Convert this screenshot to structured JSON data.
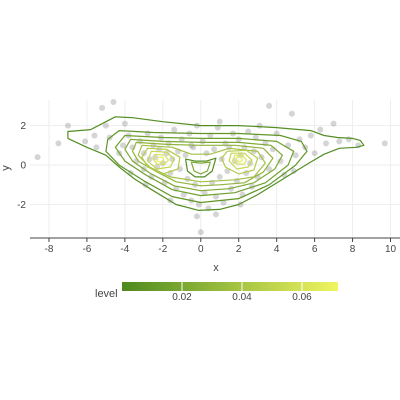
{
  "chart_data": {
    "type": "scatter",
    "subtype": "density-contour overlay",
    "title": "",
    "xlabel": "x",
    "ylabel": "y",
    "xlim": [
      -9,
      10.5
    ],
    "ylim": [
      -3.7,
      3.3
    ],
    "x_ticks": [
      -8,
      -6,
      -4,
      -2,
      0,
      2,
      4,
      6,
      8,
      10
    ],
    "y_ticks": [
      -2,
      0,
      2
    ],
    "grid": true,
    "legend": {
      "title": "level",
      "placement": "bottom",
      "type": "colorbar",
      "range": [
        0.0,
        0.072
      ],
      "ticks": [
        0.02,
        0.04,
        0.06
      ],
      "tick_labels": [
        "0.02",
        "0.04",
        "0.06"
      ],
      "color_low": "#4d8a1f",
      "color_high": "#f0f560"
    },
    "colors": {
      "points": "#888888",
      "contour_low": "#4d8a1f",
      "contour_high": "#eef263",
      "grid": "#eeeeee"
    },
    "contours": [
      {
        "level": 0.003,
        "points": [
          [
            -5.0,
            2.2
          ],
          [
            -4.5,
            2.45
          ],
          [
            -3.6,
            2.4
          ],
          [
            -2.0,
            2.2
          ],
          [
            0.0,
            2.0
          ],
          [
            2.0,
            2.0
          ],
          [
            4.0,
            1.9
          ],
          [
            5.8,
            1.75
          ],
          [
            6.5,
            1.5
          ],
          [
            7.2,
            1.4
          ],
          [
            8.0,
            1.35
          ],
          [
            8.4,
            1.25
          ],
          [
            8.6,
            1.0
          ],
          [
            8.2,
            0.9
          ],
          [
            7.3,
            0.85
          ],
          [
            6.5,
            0.55
          ],
          [
            5.7,
            0.1
          ],
          [
            4.6,
            -0.55
          ],
          [
            3.0,
            -1.5
          ],
          [
            2.0,
            -2.0
          ],
          [
            1.0,
            -2.25
          ],
          [
            -0.1,
            -2.3
          ],
          [
            -1.3,
            -2.0
          ],
          [
            -2.5,
            -1.3
          ],
          [
            -3.5,
            -0.7
          ],
          [
            -4.3,
            -0.1
          ],
          [
            -5.0,
            0.5
          ],
          [
            -6.0,
            0.9
          ],
          [
            -7.0,
            1.35
          ],
          [
            -7.0,
            1.7
          ],
          [
            -5.8,
            1.8
          ]
        ]
      },
      {
        "level": 0.008,
        "points": [
          [
            -4.3,
            1.75
          ],
          [
            -2.5,
            1.65
          ],
          [
            0.0,
            1.6
          ],
          [
            2.0,
            1.6
          ],
          [
            4.2,
            1.5
          ],
          [
            5.3,
            1.2
          ],
          [
            5.6,
            0.7
          ],
          [
            5.0,
            0.0
          ],
          [
            3.6,
            -1.0
          ],
          [
            2.0,
            -1.7
          ],
          [
            0.0,
            -1.9
          ],
          [
            -1.5,
            -1.6
          ],
          [
            -3.0,
            -0.8
          ],
          [
            -4.3,
            0.0
          ],
          [
            -5.0,
            0.7
          ],
          [
            -4.9,
            1.3
          ]
        ]
      },
      {
        "level": 0.015,
        "points": [
          [
            -4.0,
            1.5
          ],
          [
            -2.0,
            1.4
          ],
          [
            0.0,
            1.35
          ],
          [
            2.0,
            1.35
          ],
          [
            4.0,
            1.2
          ],
          [
            4.9,
            0.7
          ],
          [
            4.6,
            0.0
          ],
          [
            3.4,
            -0.9
          ],
          [
            1.8,
            -1.4
          ],
          [
            0.0,
            -1.55
          ],
          [
            -1.5,
            -1.25
          ],
          [
            -2.9,
            -0.5
          ],
          [
            -4.0,
            0.2
          ],
          [
            -4.5,
            0.9
          ]
        ]
      },
      {
        "level": 0.022,
        "points": [
          [
            -3.7,
            1.3
          ],
          [
            -2.0,
            1.2
          ],
          [
            0.0,
            1.15
          ],
          [
            2.0,
            1.15
          ],
          [
            3.7,
            1.0
          ],
          [
            4.3,
            0.5
          ],
          [
            3.9,
            -0.2
          ],
          [
            2.8,
            -0.9
          ],
          [
            1.5,
            -1.2
          ],
          [
            0.0,
            -1.3
          ],
          [
            -1.4,
            -1.05
          ],
          [
            -2.7,
            -0.4
          ],
          [
            -3.6,
            0.2
          ],
          [
            -4.0,
            0.8
          ]
        ]
      },
      {
        "level": 0.03,
        "points": [
          [
            -3.4,
            1.15
          ],
          [
            -1.8,
            1.05
          ],
          [
            0.0,
            1.0
          ],
          [
            1.8,
            1.0
          ],
          [
            3.3,
            0.85
          ],
          [
            3.8,
            0.35
          ],
          [
            3.3,
            -0.35
          ],
          [
            2.3,
            -0.9
          ],
          [
            1.0,
            -1.0
          ],
          [
            0.0,
            -1.05
          ],
          [
            -1.3,
            -0.85
          ],
          [
            -2.4,
            -0.3
          ],
          [
            -3.3,
            0.2
          ],
          [
            -3.6,
            0.7
          ]
        ]
      },
      {
        "level": 0.038,
        "points": [
          [
            -3.1,
            1.0
          ],
          [
            -1.5,
            0.9
          ],
          [
            -0.5,
            0.55
          ],
          [
            0.5,
            0.55
          ],
          [
            1.5,
            0.85
          ],
          [
            3.0,
            0.7
          ],
          [
            3.4,
            0.1
          ],
          [
            2.8,
            -0.6
          ],
          [
            1.8,
            -0.75
          ],
          [
            0.0,
            -0.85
          ],
          [
            -1.6,
            -0.6
          ],
          [
            -2.7,
            -0.1
          ],
          [
            -3.3,
            0.5
          ]
        ]
      },
      {
        "level": 0.046,
        "points": [
          [
            -2.8,
            0.85
          ],
          [
            -1.8,
            0.8
          ],
          [
            -1.1,
            0.4
          ],
          [
            -1.2,
            -0.2
          ],
          [
            -2.0,
            -0.45
          ],
          [
            -2.8,
            -0.1
          ],
          [
            -3.1,
            0.4
          ]
        ]
      },
      {
        "level": 0.046,
        "points": [
          [
            1.4,
            0.7
          ],
          [
            2.4,
            0.75
          ],
          [
            3.0,
            0.35
          ],
          [
            2.8,
            -0.25
          ],
          [
            2.0,
            -0.45
          ],
          [
            1.3,
            -0.1
          ],
          [
            1.1,
            0.35
          ]
        ]
      },
      {
        "level": 0.054,
        "points": [
          [
            -2.6,
            0.7
          ],
          [
            -1.8,
            0.65
          ],
          [
            -1.4,
            0.3
          ],
          [
            -1.6,
            -0.1
          ],
          [
            -2.3,
            -0.2
          ],
          [
            -2.8,
            0.2
          ]
        ]
      },
      {
        "level": 0.054,
        "points": [
          [
            1.6,
            0.6
          ],
          [
            2.3,
            0.6
          ],
          [
            2.7,
            0.25
          ],
          [
            2.5,
            -0.1
          ],
          [
            1.9,
            -0.2
          ],
          [
            1.5,
            0.2
          ]
        ]
      },
      {
        "level": 0.062,
        "points": [
          [
            -2.4,
            0.55
          ],
          [
            -1.9,
            0.5
          ],
          [
            -1.7,
            0.25
          ],
          [
            -1.9,
            0.05
          ],
          [
            -2.3,
            0.05
          ],
          [
            -2.5,
            0.3
          ]
        ]
      },
      {
        "level": 0.062,
        "points": [
          [
            1.8,
            0.5
          ],
          [
            2.2,
            0.5
          ],
          [
            2.4,
            0.25
          ],
          [
            2.3,
            0.05
          ],
          [
            1.9,
            0.05
          ],
          [
            1.7,
            0.25
          ]
        ]
      },
      {
        "level": 0.069,
        "points": [
          [
            -2.25,
            0.4
          ],
          [
            -2.0,
            0.4
          ],
          [
            -1.95,
            0.25
          ],
          [
            -2.1,
            0.15
          ],
          [
            -2.3,
            0.2
          ]
        ]
      },
      {
        "level": 0.069,
        "points": [
          [
            1.9,
            0.4
          ],
          [
            2.15,
            0.4
          ],
          [
            2.2,
            0.25
          ],
          [
            2.05,
            0.15
          ],
          [
            1.85,
            0.25
          ]
        ]
      },
      {
        "level": 0.003,
        "points": [
          [
            -0.8,
            0.3
          ],
          [
            -0.3,
            0.2
          ],
          [
            0.3,
            0.2
          ],
          [
            0.8,
            0.35
          ],
          [
            0.6,
            -0.3
          ],
          [
            0.2,
            -0.6
          ],
          [
            -0.3,
            -0.6
          ],
          [
            -0.7,
            -0.3
          ]
        ]
      },
      {
        "level": 0.022,
        "points": [
          [
            -0.5,
            0.15
          ],
          [
            0.0,
            0.1
          ],
          [
            0.5,
            0.15
          ],
          [
            0.35,
            -0.3
          ],
          [
            0.0,
            -0.45
          ],
          [
            -0.35,
            -0.3
          ]
        ]
      }
    ],
    "points": [
      [
        -4.6,
        3.2
      ],
      [
        -5.2,
        2.9
      ],
      [
        -7.0,
        2.0
      ],
      [
        -8.6,
        0.4
      ],
      [
        -7.5,
        1.1
      ],
      [
        -6.1,
        1.2
      ],
      [
        -5.6,
        1.5
      ],
      [
        -5.0,
        2.0
      ],
      [
        -4.8,
        1.4
      ],
      [
        -4.3,
        0.6
      ],
      [
        -4.0,
        2.1
      ],
      [
        -3.8,
        1.5
      ],
      [
        -3.6,
        0.9
      ],
      [
        -3.4,
        0.2
      ],
      [
        -3.2,
        1.2
      ],
      [
        -3.0,
        0.6
      ],
      [
        -3.0,
        -0.2
      ],
      [
        -2.8,
        1.6
      ],
      [
        -2.7,
        0.3
      ],
      [
        -2.6,
        -0.6
      ],
      [
        -2.5,
        1.0
      ],
      [
        -2.4,
        0.4
      ],
      [
        -2.3,
        -0.1
      ],
      [
        -2.2,
        0.8
      ],
      [
        -2.1,
        1.4
      ],
      [
        -2.0,
        0.1
      ],
      [
        -1.9,
        -0.9
      ],
      [
        -1.8,
        0.6
      ],
      [
        -1.7,
        1.1
      ],
      [
        -1.6,
        -0.4
      ],
      [
        -1.5,
        0.3
      ],
      [
        -1.4,
        1.8
      ],
      [
        -1.3,
        -1.2
      ],
      [
        -1.2,
        0.7
      ],
      [
        -1.1,
        -0.2
      ],
      [
        -1.0,
        1.3
      ],
      [
        -0.9,
        -1.5
      ],
      [
        -0.8,
        0.5
      ],
      [
        -0.7,
        -0.7
      ],
      [
        -0.6,
        1.6
      ],
      [
        -0.5,
        -1.8
      ],
      [
        -0.4,
        0.9
      ],
      [
        -0.3,
        -1.0
      ],
      [
        -0.2,
        2.0
      ],
      [
        -0.1,
        -2.0
      ],
      [
        0.0,
        -3.4
      ],
      [
        0.1,
        1.2
      ],
      [
        0.2,
        -1.4
      ],
      [
        0.3,
        0.6
      ],
      [
        0.4,
        -2.2
      ],
      [
        0.5,
        1.5
      ],
      [
        0.6,
        -0.9
      ],
      [
        0.7,
        0.8
      ],
      [
        0.8,
        -1.6
      ],
      [
        0.9,
        1.9
      ],
      [
        1.0,
        -0.6
      ],
      [
        1.1,
        0.3
      ],
      [
        1.2,
        -1.9
      ],
      [
        1.3,
        1.1
      ],
      [
        1.4,
        -0.3
      ],
      [
        1.5,
        0.9
      ],
      [
        1.6,
        -1.2
      ],
      [
        1.7,
        1.6
      ],
      [
        1.8,
        0.2
      ],
      [
        1.9,
        -0.8
      ],
      [
        2.0,
        1.3
      ],
      [
        2.1,
        0.5
      ],
      [
        2.2,
        -1.5
      ],
      [
        2.3,
        0.9
      ],
      [
        2.4,
        -0.4
      ],
      [
        2.5,
        1.7
      ],
      [
        2.6,
        0.1
      ],
      [
        2.7,
        -1.1
      ],
      [
        2.8,
        0.7
      ],
      [
        2.9,
        1.4
      ],
      [
        3.0,
        -0.6
      ],
      [
        3.2,
        0.4
      ],
      [
        3.4,
        1.1
      ],
      [
        3.6,
        -0.2
      ],
      [
        3.8,
        0.8
      ],
      [
        4.0,
        1.6
      ],
      [
        4.2,
        0.2
      ],
      [
        4.4,
        -0.5
      ],
      [
        4.6,
        1.0
      ],
      [
        4.8,
        2.6
      ],
      [
        5.0,
        0.5
      ],
      [
        5.2,
        1.3
      ],
      [
        5.5,
        0.9
      ],
      [
        5.8,
        1.5
      ],
      [
        6.0,
        0.6
      ],
      [
        6.3,
        1.8
      ],
      [
        6.6,
        1.1
      ],
      [
        7.0,
        2.1
      ],
      [
        7.3,
        1.2
      ],
      [
        7.8,
        1.3
      ],
      [
        8.3,
        1.0
      ],
      [
        9.7,
        1.1
      ],
      [
        3.6,
        3.0
      ],
      [
        -0.5,
        1.0
      ],
      [
        1.0,
        2.2
      ],
      [
        -2.9,
        -1.0
      ],
      [
        -3.7,
        -0.4
      ],
      [
        2.1,
        -2.0
      ],
      [
        -1.6,
        -1.8
      ],
      [
        0.8,
        -2.5
      ],
      [
        -0.2,
        -2.6
      ],
      [
        3.1,
        2.0
      ],
      [
        -4.1,
        1.0
      ],
      [
        4.9,
        -0.3
      ],
      [
        -5.5,
        0.9
      ]
    ]
  }
}
